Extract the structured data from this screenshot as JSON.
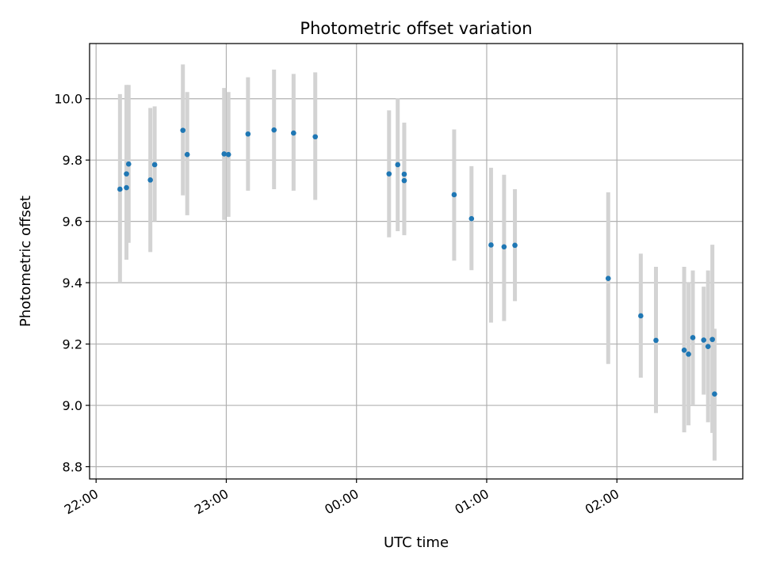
{
  "chart_data": {
    "type": "scatter",
    "title": "Photometric offset variation",
    "xlabel": "UTC time",
    "ylabel": "Photometric offset",
    "x_tick_labels": [
      "22:00",
      "23:00",
      "00:00",
      "01:00",
      "02:00"
    ],
    "y_tick_labels": [
      "8.8",
      "9.0",
      "9.2",
      "9.4",
      "9.6",
      "9.8",
      "10.0"
    ],
    "ylim": [
      8.76,
      10.18
    ],
    "xlim": [
      "21:57",
      "02:58"
    ],
    "grid": true,
    "colors": {
      "points": "#1f77b4",
      "error_bars": "#d3d3d3",
      "grid": "#b0b0b0"
    },
    "series": [
      {
        "x": [
          "22:11",
          "22:14",
          "22:14",
          "22:15",
          "22:25",
          "22:27",
          "22:40",
          "22:42",
          "22:59",
          "23:01",
          "23:10",
          "23:22",
          "23:31",
          "23:41",
          "00:15",
          "00:19",
          "00:22",
          "00:22",
          "00:45",
          "00:53",
          "01:02",
          "01:08",
          "01:13",
          "01:56",
          "02:11",
          "02:18",
          "02:31",
          "02:33",
          "02:35",
          "02:40",
          "02:42",
          "02:44",
          "02:45"
        ],
        "y": [
          9.705,
          9.755,
          9.71,
          9.787,
          9.735,
          9.785,
          9.897,
          9.818,
          9.82,
          9.818,
          9.885,
          9.898,
          9.888,
          9.876,
          9.755,
          9.785,
          9.754,
          9.733,
          9.687,
          9.609,
          9.523,
          9.517,
          9.522,
          9.414,
          9.292,
          9.212,
          9.18,
          9.167,
          9.221,
          9.213,
          9.192,
          9.215,
          9.037
        ],
        "yerr_low": [
          9.4,
          9.475,
          9.535,
          9.53,
          9.5,
          9.6,
          9.685,
          9.62,
          9.605,
          9.615,
          9.7,
          9.705,
          9.7,
          9.67,
          9.548,
          9.568,
          9.56,
          9.555,
          9.472,
          9.441,
          9.27,
          9.275,
          9.34,
          9.135,
          9.09,
          8.975,
          8.912,
          8.935,
          9.0,
          9.035,
          8.945,
          8.91,
          8.82
        ],
        "yerr_high": [
          10.015,
          10.0,
          10.045,
          10.045,
          9.97,
          9.975,
          10.112,
          10.022,
          10.035,
          10.022,
          10.07,
          10.095,
          10.081,
          10.086,
          9.962,
          10.002,
          9.922,
          9.912,
          9.9,
          9.78,
          9.775,
          9.752,
          9.705,
          9.695,
          9.495,
          9.452,
          9.452,
          9.401,
          9.44,
          9.387,
          9.44,
          9.524,
          9.25
        ]
      }
    ]
  }
}
